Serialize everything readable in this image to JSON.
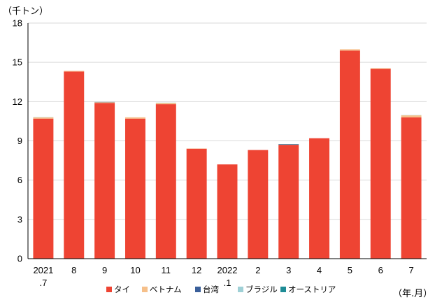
{
  "chart_data": {
    "type": "bar",
    "stacked": true,
    "title": "",
    "ylabel": "（千トン）",
    "xlabel": "（年.月）",
    "ylim": [
      0,
      18
    ],
    "yticks": [
      0,
      3,
      6,
      9,
      12,
      15,
      18
    ],
    "categories": [
      [
        "2021",
        ".7"
      ],
      [
        "8"
      ],
      [
        "9"
      ],
      [
        "10"
      ],
      [
        "11"
      ],
      [
        "12"
      ],
      [
        "2022",
        ".1"
      ],
      [
        "2"
      ],
      [
        "3"
      ],
      [
        "4"
      ],
      [
        "5"
      ],
      [
        "6"
      ],
      [
        "7"
      ]
    ],
    "series": [
      {
        "name": "タイ",
        "color": "#ee4433",
        "values": [
          10.7,
          14.3,
          11.9,
          10.7,
          11.8,
          8.4,
          7.2,
          8.3,
          8.7,
          9.2,
          15.9,
          14.5,
          10.8
        ]
      },
      {
        "name": "ベトナム",
        "color": "#f6c08a",
        "values": [
          0.1,
          0.05,
          0.05,
          0.1,
          0.1,
          0.02,
          0.0,
          0.0,
          0.0,
          0.0,
          0.1,
          0.05,
          0.15
        ]
      },
      {
        "name": "台湾",
        "color": "#3a5f9a",
        "values": [
          0.0,
          0.0,
          0.02,
          0.0,
          0.0,
          0.0,
          0.0,
          0.0,
          0.03,
          0.0,
          0.0,
          0.0,
          0.0
        ]
      },
      {
        "name": "ブラジル",
        "color": "#9fd0d6",
        "values": [
          0.02,
          0.0,
          0.0,
          0.0,
          0.02,
          0.0,
          0.0,
          0.0,
          0.0,
          0.0,
          0.0,
          0.0,
          0.02
        ]
      },
      {
        "name": "オーストリア",
        "color": "#1e8c96",
        "values": [
          0.0,
          0.0,
          0.0,
          0.0,
          0.0,
          0.0,
          0.0,
          0.0,
          0.02,
          0.0,
          0.0,
          0.0,
          0.0
        ]
      }
    ],
    "grid": true,
    "legend_position": "bottom"
  }
}
